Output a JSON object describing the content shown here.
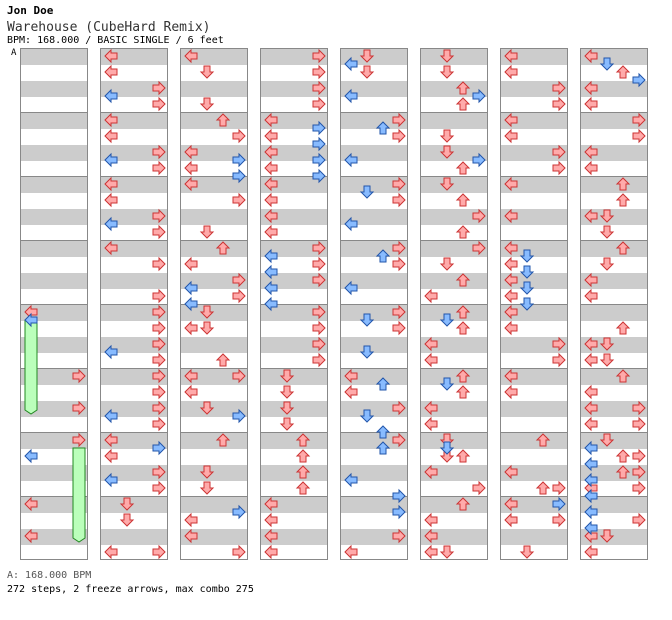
{
  "header": {
    "author": "Jon Doe",
    "song_title": "Warehouse (CubeHard Remix)",
    "meta": "BPM: 168.000 / BASIC SINGLE / 6 feet"
  },
  "chart": {
    "bpm_marker_label": "A",
    "columns": 8,
    "measures_per_column": 8
  },
  "footer": {
    "bpm_line": "A: 168.000 BPM",
    "stats_line": "272 steps, 2 freeze arrows, max combo 275"
  },
  "colors": {
    "red_arrow": "#ffaaaa",
    "blue_arrow": "#88bbff",
    "freeze": "#bbffbb",
    "stripe": "#cccccc"
  }
}
